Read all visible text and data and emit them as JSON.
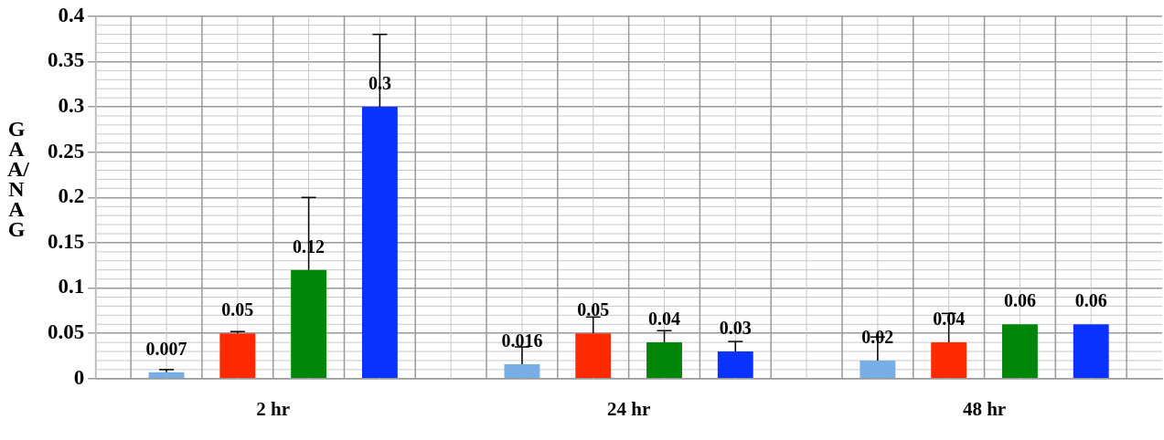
{
  "chart_data": {
    "type": "bar",
    "ylabel": "GAA/NAG",
    "categories": [
      "2 hr",
      "24 hr",
      "48 hr"
    ],
    "series": [
      {
        "color": "#78aee6",
        "values": [
          0.007,
          0.016,
          0.02
        ],
        "errors": [
          [
            0.007,
            0.01
          ],
          [
            0.016,
            0.035
          ],
          [
            0.02,
            0.046
          ]
        ]
      },
      {
        "color": "#ff2a00",
        "values": [
          0.05,
          0.05,
          0.04
        ],
        "errors": [
          [
            0.05,
            0.052
          ],
          [
            0.05,
            0.068
          ],
          [
            0.04,
            0.072
          ]
        ]
      },
      {
        "color": "#00870a",
        "values": [
          0.12,
          0.04,
          0.06
        ],
        "errors": [
          [
            0.12,
            0.2
          ],
          [
            0.04,
            0.053
          ],
          null
        ]
      },
      {
        "color": "#0a32ff",
        "values": [
          0.3,
          0.03,
          0.06
        ],
        "errors": [
          [
            0.3,
            0.38
          ],
          [
            0.03,
            0.041
          ],
          null
        ]
      }
    ],
    "ylim": [
      0,
      0.4
    ],
    "yticks": [
      0,
      0.05,
      0.1,
      0.15,
      0.2,
      0.25,
      0.3,
      0.35,
      0.4
    ],
    "grid": true,
    "legend": false,
    "data_labels": true
  }
}
